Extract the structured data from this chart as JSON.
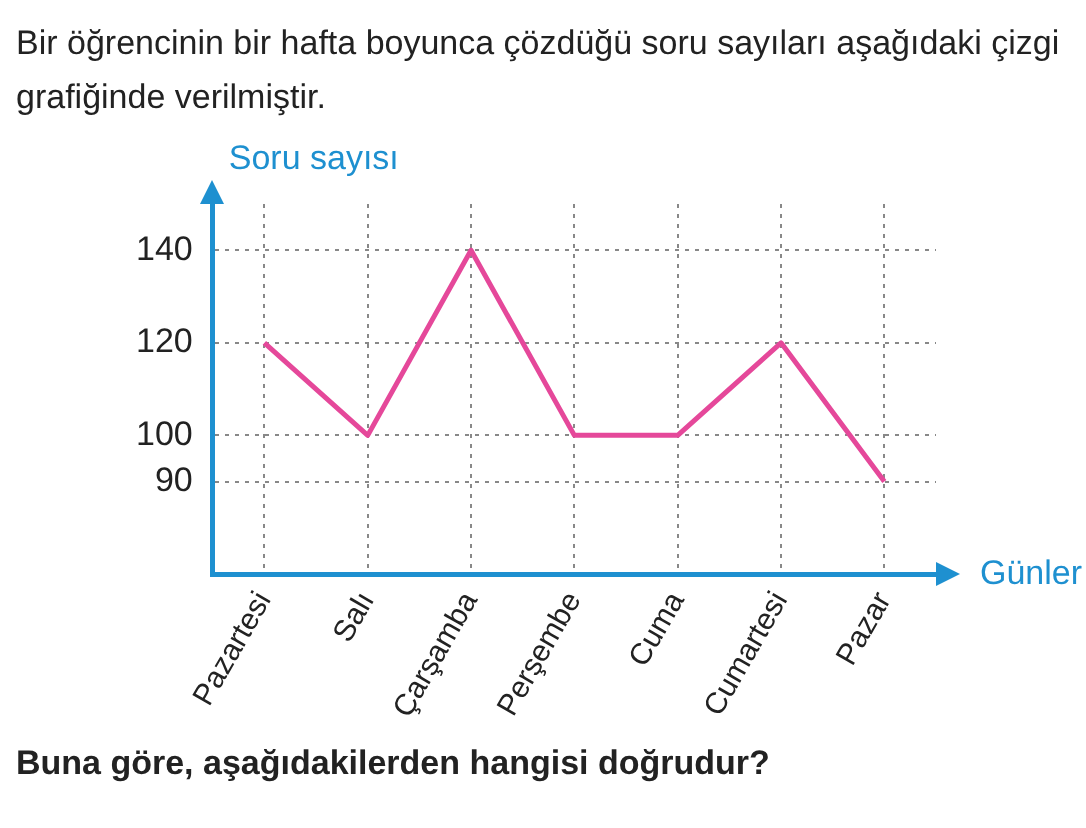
{
  "chart_data": {
    "type": "line",
    "title": "Bir öğrencinin bir hafta boyunca çözdüğü soru sayıları aşağıdaki çizgi grafiğinde verilmiştir.",
    "xlabel": "Günler",
    "ylabel": "Soru sayısı",
    "annotations": [
      "Buna göre, aşağıdakilerden hangisi doğrudur?"
    ],
    "categories": [
      "Pazartesi",
      "Salı",
      "Çarşamba",
      "Perşembe",
      "Cuma",
      "Cumartesi",
      "Pazar"
    ],
    "series": [
      {
        "color": "#e5489a",
        "values": [
          120,
          100,
          140,
          100,
          100,
          120,
          90
        ]
      }
    ],
    "ylim": [
      70,
      150
    ],
    "yticks": [
      90,
      100,
      120,
      140
    ],
    "grid": true,
    "legend": false,
    "marker": "none",
    "line_style": "solid"
  }
}
